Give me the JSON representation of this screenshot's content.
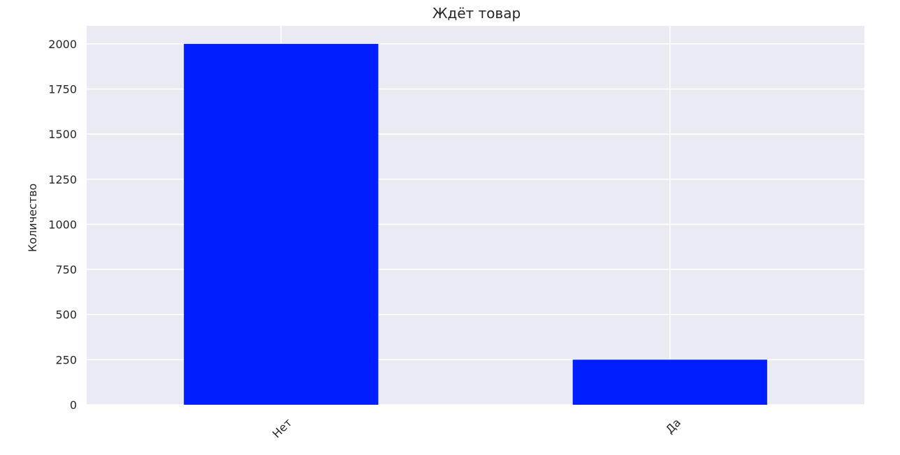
{
  "chart_data": {
    "type": "bar",
    "title": "Ждёт товар",
    "xlabel": "",
    "ylabel": "Количество",
    "categories": [
      "Нет",
      "Да"
    ],
    "values": [
      2000,
      250
    ],
    "ylim": [
      0,
      2100
    ],
    "yticks": [
      0,
      250,
      500,
      750,
      1000,
      1250,
      1500,
      1750,
      2000
    ],
    "grid": true,
    "legend": "none",
    "colors": {
      "bar": "#001EFF",
      "plot_background": "#EAEAF2",
      "grid": "#FFFFFF",
      "text": "#262626"
    }
  }
}
